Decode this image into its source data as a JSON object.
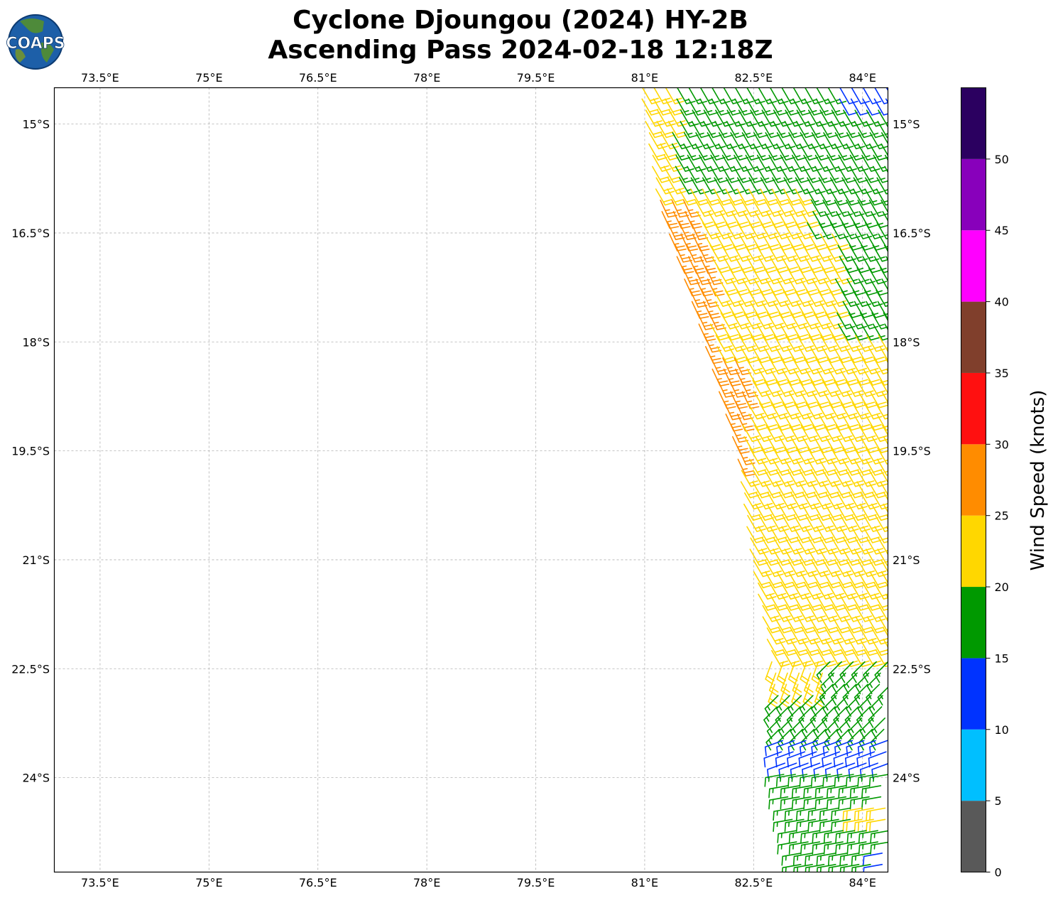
{
  "title_line1": "Cyclone Djoungou (2024) HY-2B",
  "title_line2": "Ascending Pass 2024-02-18 12:18Z",
  "logo_text": "COAPS",
  "chart_data": {
    "type": "wind-barb map",
    "title": "Cyclone Djoungou (2024) HY-2B Ascending Pass 2024-02-18 12:18Z",
    "lon_ticks": [
      {
        "value": 73.5,
        "label": "73.5°E"
      },
      {
        "value": 75.0,
        "label": "75°E"
      },
      {
        "value": 76.5,
        "label": "76.5°E"
      },
      {
        "value": 78.0,
        "label": "78°E"
      },
      {
        "value": 79.5,
        "label": "79.5°E"
      },
      {
        "value": 81.0,
        "label": "81°E"
      },
      {
        "value": 82.5,
        "label": "82.5°E"
      },
      {
        "value": 84.0,
        "label": "84°E"
      }
    ],
    "lat_ticks": [
      {
        "value": -15.0,
        "label": "15°S"
      },
      {
        "value": -16.5,
        "label": "16.5°S"
      },
      {
        "value": -18.0,
        "label": "18°S"
      },
      {
        "value": -19.5,
        "label": "19.5°S"
      },
      {
        "value": -21.0,
        "label": "21°S"
      },
      {
        "value": -22.5,
        "label": "22.5°S"
      },
      {
        "value": -24.0,
        "label": "24°S"
      }
    ],
    "lon_range": [
      72.87,
      84.35
    ],
    "lat_range": [
      -25.3,
      -14.5
    ],
    "grid": true,
    "colorbar": {
      "label": "Wind Speed (knots)",
      "ticks": [
        0,
        5,
        10,
        15,
        20,
        25,
        30,
        35,
        40,
        45,
        50
      ],
      "range": [
        0,
        55
      ],
      "bins": [
        {
          "from": 0,
          "to": 5,
          "color": "#595959"
        },
        {
          "from": 5,
          "to": 10,
          "color": "#00bfff"
        },
        {
          "from": 10,
          "to": 15,
          "color": "#0033ff"
        },
        {
          "from": 15,
          "to": 20,
          "color": "#009900"
        },
        {
          "from": 20,
          "to": 25,
          "color": "#ffd700"
        },
        {
          "from": 25,
          "to": 30,
          "color": "#ff8c00"
        },
        {
          "from": 30,
          "to": 35,
          "color": "#ff1010"
        },
        {
          "from": 35,
          "to": 40,
          "color": "#803f2c"
        },
        {
          "from": 40,
          "to": 45,
          "color": "#ff00ff"
        },
        {
          "from": 45,
          "to": 50,
          "color": "#8800bb"
        },
        {
          "from": 50,
          "to": 55,
          "color": "#2b0060"
        }
      ]
    },
    "swath": {
      "lon_west_edge_at_lat": [
        [
          -14.5,
          80.97
        ],
        [
          -16.0,
          81.2
        ],
        [
          -17.5,
          81.7
        ],
        [
          -19.5,
          82.3
        ],
        [
          -21.0,
          82.5
        ],
        [
          -22.5,
          82.8
        ],
        [
          -24.0,
          82.95
        ],
        [
          -25.3,
          83.2
        ]
      ],
      "lon_east": 84.35
    },
    "wind_zones": [
      {
        "lat_from": -14.5,
        "lat_to": -15.8,
        "speed_kt": 17,
        "direction_deg": 150,
        "note": "green band over east of swath"
      },
      {
        "lat_from": -14.5,
        "lat_to": -14.8,
        "lon_from": 83.6,
        "speed_kt": 12,
        "direction_deg": 150
      },
      {
        "lat_from": -15.8,
        "lat_to": -16.4,
        "speed_kt": 17,
        "direction_deg": 150,
        "lon_from": 83.2
      },
      {
        "lat_from": -16.4,
        "lat_to": -17.9,
        "speed_kt": 17,
        "direction_deg": 150,
        "lon_from": 83.5
      },
      {
        "lat_from": -16.0,
        "lat_to": -18.2,
        "speed_kt": 27,
        "direction_deg": 155,
        "lon_to": 81.9
      },
      {
        "lat_from": -18.2,
        "lat_to": -19.7,
        "speed_kt": 27,
        "direction_deg": 155,
        "lon_to": 82.35
      },
      {
        "lat_from": -14.5,
        "lat_to": -22.3,
        "speed_kt": 22,
        "direction_deg": 150,
        "note": "yellow main band"
      },
      {
        "lat_from": -22.3,
        "lat_to": -23.5,
        "speed_kt": 17,
        "direction_deg": 225
      },
      {
        "lat_from": -23.4,
        "lat_to": -23.9,
        "speed_kt": 12,
        "direction_deg": 250
      },
      {
        "lat_from": -23.9,
        "lat_to": -25.3,
        "speed_kt": 17,
        "direction_deg": 260
      },
      {
        "lat_from": -24.3,
        "lat_to": -24.6,
        "lon_from": 84.0,
        "speed_kt": 22,
        "direction_deg": 260
      }
    ]
  }
}
